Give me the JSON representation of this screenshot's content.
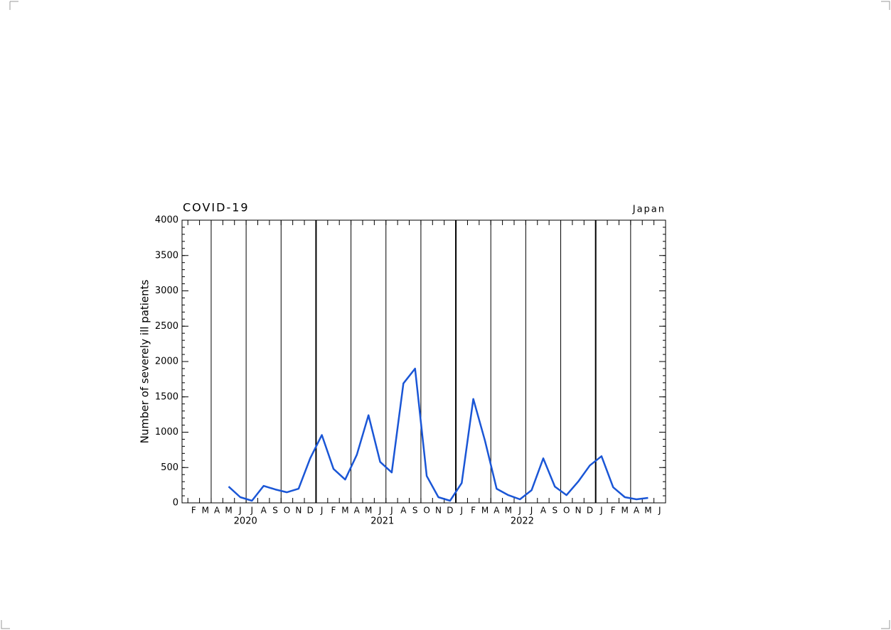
{
  "chart_data": {
    "type": "line",
    "title": "COVID-19",
    "subtitle": "Japan",
    "y_label": "Number of severely ill patients",
    "xlim": [
      "2020-01",
      "2023-06"
    ],
    "ylim": [
      0,
      4000
    ],
    "yticks": [
      0,
      500,
      1000,
      1500,
      2000,
      2500,
      3000,
      3500,
      4000
    ],
    "xticks": [
      {
        "value": "2020-02",
        "label": "F"
      },
      {
        "value": "2020-03",
        "label": "M"
      },
      {
        "value": "2020-04",
        "label": "A"
      },
      {
        "value": "2020-05",
        "label": "M"
      },
      {
        "value": "2020-06",
        "label": "J"
      },
      {
        "value": "2020-07",
        "label": "J"
      },
      {
        "value": "2020-08",
        "label": "A"
      },
      {
        "value": "2020-09",
        "label": "S"
      },
      {
        "value": "2020-10",
        "label": "O"
      },
      {
        "value": "2020-11",
        "label": "N"
      },
      {
        "value": "2020-12",
        "label": "D"
      },
      {
        "value": "2021-01",
        "label": "J"
      },
      {
        "value": "2021-02",
        "label": "F"
      },
      {
        "value": "2021-03",
        "label": "M"
      },
      {
        "value": "2021-04",
        "label": "A"
      },
      {
        "value": "2021-05",
        "label": "M"
      },
      {
        "value": "2021-06",
        "label": "J"
      },
      {
        "value": "2021-07",
        "label": "J"
      },
      {
        "value": "2021-08",
        "label": "A"
      },
      {
        "value": "2021-09",
        "label": "S"
      },
      {
        "value": "2021-10",
        "label": "O"
      },
      {
        "value": "2021-11",
        "label": "N"
      },
      {
        "value": "2021-12",
        "label": "D"
      },
      {
        "value": "2022-01",
        "label": "J"
      },
      {
        "value": "2022-02",
        "label": "F"
      },
      {
        "value": "2022-03",
        "label": "M"
      },
      {
        "value": "2022-04",
        "label": "A"
      },
      {
        "value": "2022-05",
        "label": "M"
      },
      {
        "value": "2022-06",
        "label": "J"
      },
      {
        "value": "2022-07",
        "label": "J"
      },
      {
        "value": "2022-08",
        "label": "A"
      },
      {
        "value": "2022-09",
        "label": "S"
      },
      {
        "value": "2022-10",
        "label": "O"
      },
      {
        "value": "2022-11",
        "label": "N"
      },
      {
        "value": "2022-12",
        "label": "D"
      },
      {
        "value": "2023-01",
        "label": "J"
      },
      {
        "value": "2023-02",
        "label": "F"
      },
      {
        "value": "2023-03",
        "label": "M"
      },
      {
        "value": "2023-04",
        "label": "A"
      },
      {
        "value": "2023-05",
        "label": "M"
      },
      {
        "value": "2023-06",
        "label": "J"
      }
    ],
    "years": [
      "2020",
      "2021",
      "2022"
    ],
    "x": [
      "2020-05",
      "2020-06",
      "2020-07",
      "2020-08",
      "2020-09",
      "2020-10",
      "2020-11",
      "2020-12",
      "2021-01",
      "2021-02",
      "2021-03",
      "2021-04",
      "2021-05",
      "2021-06",
      "2021-07",
      "2021-08",
      "2021-09",
      "2021-10",
      "2021-11",
      "2021-12",
      "2022-01",
      "2022-02",
      "2022-03",
      "2022-04",
      "2022-05",
      "2022-06",
      "2022-07",
      "2022-08",
      "2022-09",
      "2022-10",
      "2022-11",
      "2022-12",
      "2023-01",
      "2023-02",
      "2023-03",
      "2023-04",
      "2023-05"
    ],
    "series": [
      {
        "color": "#1a56d6",
        "values": [
          230,
          80,
          30,
          240,
          190,
          150,
          200,
          630,
          960,
          480,
          330,
          680,
          1240,
          580,
          430,
          1690,
          1900,
          380,
          80,
          30,
          280,
          1470,
          880,
          200,
          110,
          50,
          180,
          630,
          230,
          110,
          300,
          530,
          660,
          220,
          80,
          50,
          70
        ]
      }
    ]
  }
}
